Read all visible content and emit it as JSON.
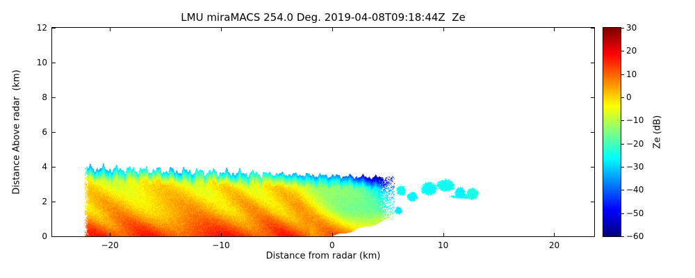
{
  "chart_data": {
    "type": "heatmap",
    "title": "LMU miraMACS 254.0 Deg. 2019-04-08T09:18:44Z  Ze",
    "xlabel": "Distance from radar (km)",
    "ylabel": "Distance Above radar  (km)",
    "xlim": [
      -25.2,
      23.6
    ],
    "ylim": [
      0,
      12
    ],
    "grid": false,
    "xticks": [
      {
        "v": -20,
        "label": "−20"
      },
      {
        "v": -10,
        "label": "−10"
      },
      {
        "v": 0,
        "label": "0"
      },
      {
        "v": 10,
        "label": "10"
      },
      {
        "v": 20,
        "label": "20"
      }
    ],
    "yticks": [
      {
        "v": 0,
        "label": "0"
      },
      {
        "v": 2,
        "label": "2"
      },
      {
        "v": 4,
        "label": "4"
      },
      {
        "v": 6,
        "label": "6"
      },
      {
        "v": 8,
        "label": "8"
      },
      {
        "v": 10,
        "label": "10"
      },
      {
        "v": 12,
        "label": "12"
      }
    ],
    "colorbar": {
      "label": "Ze (dB)",
      "min": -60,
      "max": 30,
      "colormap": "jet",
      "ticks": [
        {
          "v": 30,
          "label": "30"
        },
        {
          "v": 20,
          "label": "20"
        },
        {
          "v": 10,
          "label": "10"
        },
        {
          "v": 0,
          "label": "0"
        },
        {
          "v": -10,
          "label": "−10"
        },
        {
          "v": -20,
          "label": "−20"
        },
        {
          "v": -30,
          "label": "−30"
        },
        {
          "v": -40,
          "label": "−40"
        },
        {
          "v": -50,
          "label": "−50"
        },
        {
          "v": -60,
          "label": "−60"
        }
      ]
    },
    "echo": {
      "description": "Shallow precipitating cloud layer below ~4 km: high reflectivity (red/orange, 5-18 dB) at low levels left of the radar, yellow mid-levels with diagonal fall streaks, cyan/blue (-20 to -50 dB) fringe along cloud top and toward the right edge, scattered weak cyan cells between x=6 and x=13 km above the lowest-beam boundary line.",
      "x_range": [
        -22.3,
        5.6
      ],
      "top_base_km": 3.95,
      "top_slope_km_per_km": -0.02,
      "top_ragged_km": 0.3,
      "lower_boundary": {
        "x0_km": 0.0,
        "slope": 0.185
      },
      "ze_surface_db": 9,
      "ze_lapse_db_per_km": 4.2,
      "low_level_boost_db": 5,
      "right_cooling_start_x_km": -3,
      "right_cooling_db_per_km": 3.4,
      "top_fringe_depth_km": 0.7,
      "top_fringe_drop_db": 24,
      "streak_amp_db": 4,
      "speckle_db": 3,
      "scattered_cells": [
        {
          "x": 6.2,
          "z": 2.65,
          "rx": 0.45,
          "rz": 0.3,
          "ze": -26
        },
        {
          "x": 7.2,
          "z": 2.3,
          "rx": 0.5,
          "rz": 0.28,
          "ze": -27
        },
        {
          "x": 8.7,
          "z": 2.75,
          "rx": 0.75,
          "rz": 0.4,
          "ze": -26
        },
        {
          "x": 10.2,
          "z": 2.95,
          "rx": 0.85,
          "rz": 0.35,
          "ze": -25
        },
        {
          "x": 11.5,
          "z": 2.55,
          "rx": 0.5,
          "rz": 0.3,
          "ze": -27
        },
        {
          "x": 12.6,
          "z": 2.45,
          "rx": 0.55,
          "rz": 0.35,
          "ze": -24
        },
        {
          "x": 11.8,
          "z": 2.3,
          "rx": 1.2,
          "rz": 0.12,
          "ze": -25
        },
        {
          "x": 5.95,
          "z": 1.5,
          "rx": 0.35,
          "rz": 0.22,
          "ze": -28
        }
      ]
    }
  }
}
